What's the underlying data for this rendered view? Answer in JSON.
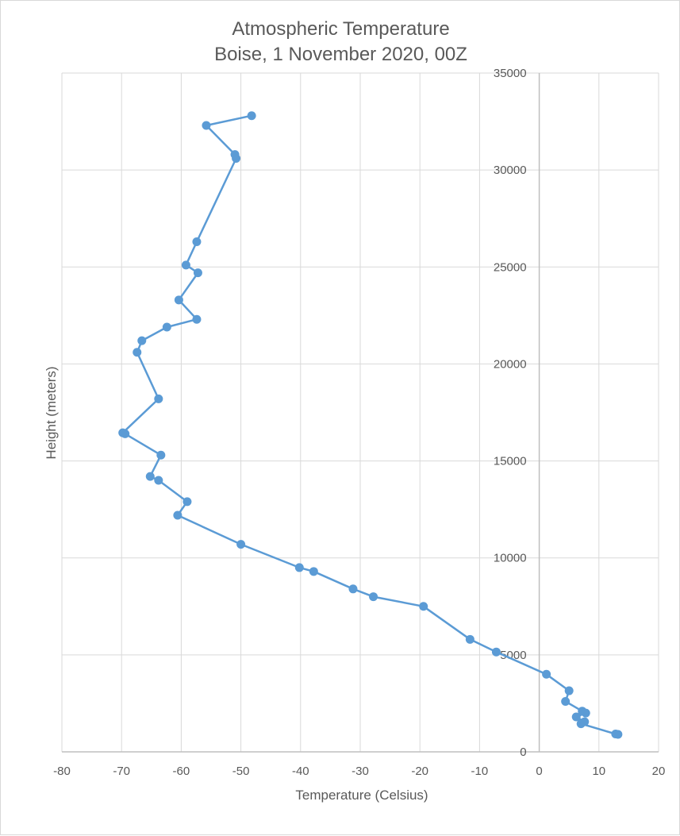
{
  "chart_data": {
    "type": "scatter",
    "title": "Atmospheric Temperature",
    "subtitle": "Boise, 1 November 2020, 00Z",
    "xlabel": "Temperature (Celsius)",
    "ylabel": "Height (meters)",
    "xlim": [
      -80,
      20
    ],
    "ylim": [
      0,
      35000
    ],
    "x_ticks": [
      -80,
      -70,
      -60,
      -50,
      -40,
      -30,
      -20,
      -10,
      0,
      10,
      20
    ],
    "y_ticks": [
      0,
      5000,
      10000,
      15000,
      20000,
      25000,
      30000,
      35000
    ],
    "grid": true,
    "legend": "none",
    "line_color": "#5b9bd5",
    "marker_color": "#5b9bd5",
    "grid_color": "#d9d9d9",
    "axis_color": "#bfbfbf",
    "series": [
      {
        "x": [
          13.2,
          12.8,
          7.0,
          7.6,
          6.2,
          7.8,
          7.2,
          4.4,
          5.0,
          1.2,
          -7.2,
          -11.6,
          -19.4,
          -27.8,
          -31.2,
          -37.8,
          -40.2,
          -50.0,
          -60.6,
          -59.0,
          -63.8,
          -65.2,
          -63.4,
          -69.4,
          -69.8,
          -63.8,
          -67.4,
          -66.6,
          -62.4,
          -57.4,
          -60.4,
          -57.2,
          -59.2,
          -57.4,
          -50.8,
          -51.0,
          -55.8,
          -48.2
        ],
        "y": [
          900,
          920,
          1450,
          1550,
          1800,
          2000,
          2100,
          2600,
          3150,
          4000,
          5150,
          5800,
          7500,
          8000,
          8400,
          9300,
          9500,
          10700,
          12200,
          12900,
          14000,
          14200,
          15300,
          16400,
          16450,
          18200,
          20600,
          21200,
          21900,
          22300,
          23300,
          24700,
          25100,
          26300,
          30600,
          30800,
          32300,
          32800
        ]
      }
    ]
  }
}
